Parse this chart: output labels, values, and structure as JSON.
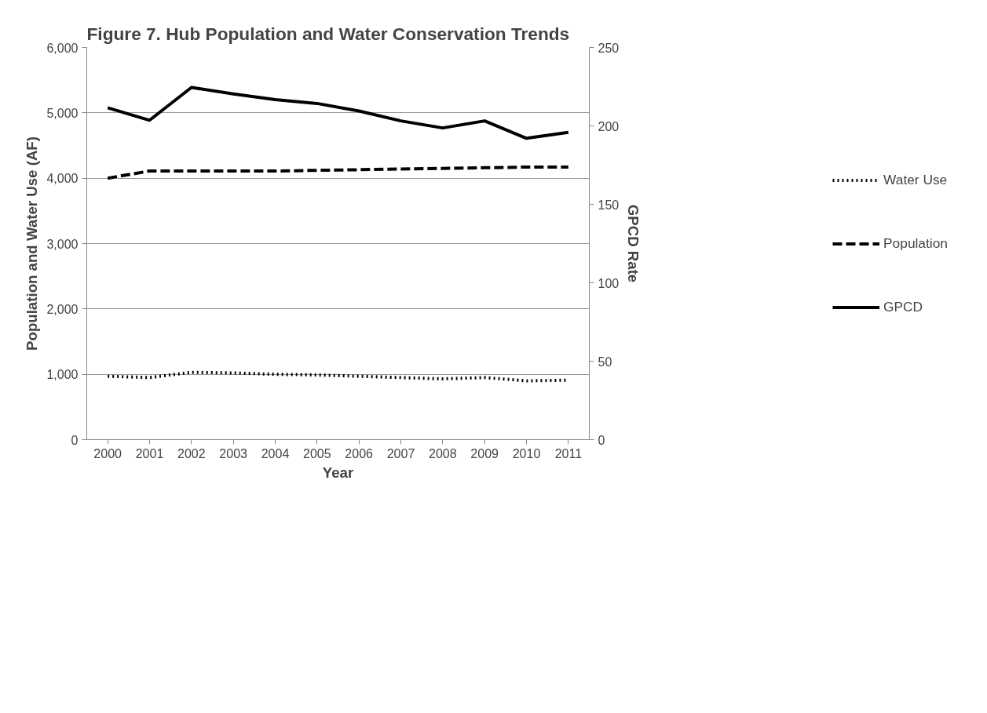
{
  "chart_data": {
    "type": "line",
    "title": "Figure 7.  Hub Population and Water Conservation Trends",
    "xlabel": "Year",
    "ylabel": "Population and Water Use (AF)",
    "y2label": "GPCD Rate",
    "categories": [
      "2000",
      "2001",
      "2002",
      "2003",
      "2004",
      "2005",
      "2006",
      "2007",
      "2008",
      "2009",
      "2010",
      "2011"
    ],
    "series": [
      {
        "name": "Water Use",
        "color": "#000000",
        "line_style": "dotted",
        "values": [
          970,
          950,
          1030,
          1020,
          1000,
          990,
          970,
          950,
          930,
          950,
          900,
          910
        ]
      },
      {
        "name": "Population",
        "color": "#000000",
        "line_style": "dashed",
        "values": [
          4000,
          4110,
          4110,
          4110,
          4110,
          4120,
          4130,
          4140,
          4150,
          4160,
          4170,
          4170
        ]
      },
      {
        "name": "GPCD",
        "color": "#000000",
        "line_style": "solid",
        "axis": "y2",
        "values": [
          211.6,
          203.6,
          224.5,
          220.4,
          216.8,
          214.3,
          209.5,
          203.2,
          198.7,
          203.2,
          192.1,
          195.9
        ]
      }
    ],
    "ylim": [
      0,
      6000
    ],
    "yticks": [
      {
        "value": 0,
        "label": "0"
      },
      {
        "value": 1000,
        "label": "1,000"
      },
      {
        "value": 2000,
        "label": "2,000"
      },
      {
        "value": 3000,
        "label": "3,000"
      },
      {
        "value": 4000,
        "label": "4,000"
      },
      {
        "value": 5000,
        "label": "5,000"
      },
      {
        "value": 6000,
        "label": "6,000"
      }
    ],
    "y2lim": [
      0,
      250
    ],
    "y2ticks": [
      0,
      50,
      100,
      150,
      200,
      250
    ],
    "grid": "y",
    "legend": "right",
    "marker": "none"
  }
}
